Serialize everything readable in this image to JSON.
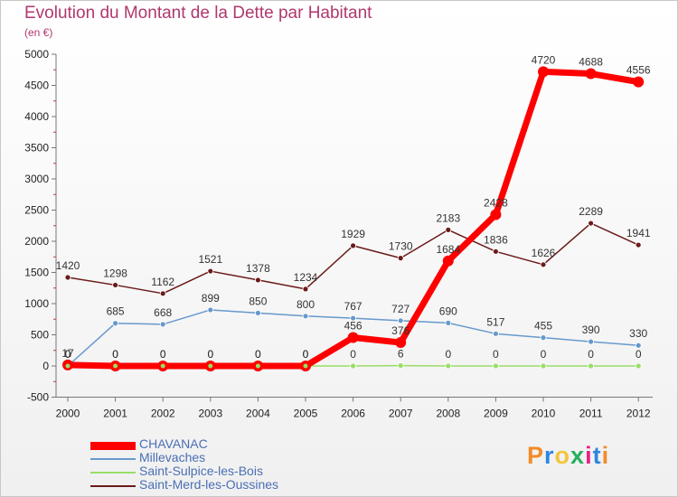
{
  "page": {
    "title": "Evolution du Montant de la Dette par Habitant",
    "subtitle": "(en €)",
    "logo": "Proxiti"
  },
  "chart_data": {
    "type": "line",
    "title": "Evolution du Montant de la Dette par Habitant",
    "subtitle": "(en €)",
    "x": [
      "2000",
      "2001",
      "2002",
      "2003",
      "2004",
      "2005",
      "2006",
      "2007",
      "2008",
      "2009",
      "2010",
      "2011",
      "2012"
    ],
    "ylim": [
      -500,
      5000
    ],
    "yticks": [
      -500,
      0,
      500,
      1000,
      1500,
      2000,
      2500,
      3000,
      3500,
      4000,
      4500,
      5000
    ],
    "grid": false,
    "legend_position": "bottom-left",
    "series": [
      {
        "name": "CHAVANAC",
        "color": "#ff0000",
        "values": [
          17,
          0,
          0,
          0,
          0,
          0,
          456,
          376,
          1684,
          2428,
          4720,
          4688,
          4556
        ],
        "labels": [
          "17",
          "0",
          "0",
          "0",
          "0",
          "0",
          "456",
          "376",
          "1684",
          "2428",
          "4720",
          "4688",
          "4556"
        ]
      },
      {
        "name": "Millevaches",
        "color": "#6699cc",
        "values": [
          0,
          685,
          668,
          899,
          850,
          800,
          767,
          727,
          690,
          517,
          455,
          390,
          330
        ],
        "labels": [
          "0",
          "685",
          "668",
          "899",
          "850",
          "800",
          "767",
          "727",
          "690",
          "517",
          "455",
          "390",
          "330"
        ]
      },
      {
        "name": "Saint-Sulpice-les-Bois",
        "color": "#99dd66",
        "values": [
          0,
          0,
          0,
          0,
          0,
          0,
          0,
          6,
          0,
          0,
          0,
          0,
          0
        ],
        "labels": [
          "0",
          "0",
          "0",
          "0",
          "0",
          "0",
          "0",
          "6",
          "0",
          "0",
          "0",
          "0",
          "0"
        ]
      },
      {
        "name": "Saint-Merd-les-Oussines",
        "color": "#6b1a1a",
        "values": [
          1420,
          1298,
          1162,
          1521,
          1378,
          1234,
          1929,
          1730,
          2183,
          1836,
          1626,
          2289,
          1941
        ],
        "labels": [
          "1420",
          "1298",
          "1162",
          "1521",
          "1378",
          "1234",
          "1929",
          "1730",
          "2183",
          "1836",
          "1626",
          "2289",
          "1941"
        ]
      }
    ]
  }
}
